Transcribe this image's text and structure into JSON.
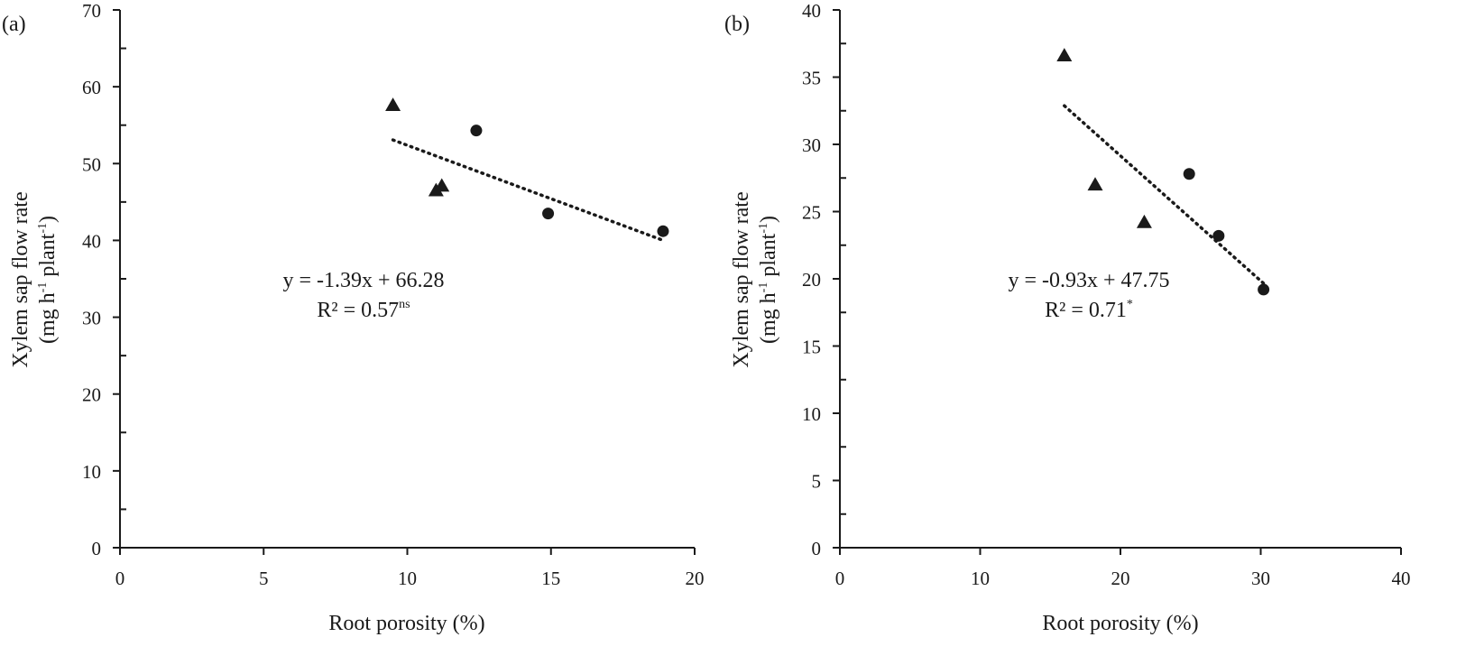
{
  "chart_data": [
    {
      "type": "scatter",
      "panel_label": "(a)",
      "xlabel": "Root porosity (%)",
      "ylabel_line1": "Xylem sap flow rate",
      "ylabel_line2_parts": [
        "(mg h",
        "-1",
        " plant",
        "-1",
        ")"
      ],
      "xlim": [
        0,
        20
      ],
      "ylim": [
        0,
        70
      ],
      "x_ticks": [
        0,
        5,
        10,
        15,
        20
      ],
      "y_ticks": [
        0,
        10,
        20,
        30,
        40,
        50,
        60,
        70
      ],
      "series": [
        {
          "name": "triangles",
          "marker": "triangle",
          "points": [
            [
              9.5,
              57.6
            ],
            [
              11.0,
              46.5
            ],
            [
              11.2,
              47.1
            ]
          ]
        },
        {
          "name": "circles",
          "marker": "circle",
          "points": [
            [
              12.4,
              54.3
            ],
            [
              14.9,
              43.5
            ],
            [
              18.9,
              41.2
            ]
          ]
        }
      ],
      "trendline": {
        "slope": -1.39,
        "intercept": 66.28,
        "x_range": [
          9.5,
          18.9
        ]
      },
      "equation": "y = -1.39x + 66.28",
      "r2_text": "R² = 0.57",
      "r2_sup": "ns"
    },
    {
      "type": "scatter",
      "panel_label": "(b)",
      "xlabel": "Root porosity (%)",
      "ylabel_line1": "Xylem sap flow rate",
      "ylabel_line2_parts": [
        "(mg h",
        "-1",
        " plant",
        "-1",
        ")"
      ],
      "xlim": [
        0,
        40
      ],
      "ylim": [
        0,
        40
      ],
      "x_ticks": [
        0,
        10,
        20,
        30,
        40
      ],
      "y_ticks": [
        0,
        5,
        10,
        15,
        20,
        25,
        30,
        35,
        40
      ],
      "series": [
        {
          "name": "triangles",
          "marker": "triangle",
          "points": [
            [
              16.0,
              36.6
            ],
            [
              18.2,
              27.0
            ],
            [
              21.7,
              24.2
            ]
          ]
        },
        {
          "name": "circles",
          "marker": "circle",
          "points": [
            [
              24.9,
              27.8
            ],
            [
              27.0,
              23.2
            ],
            [
              30.2,
              19.2
            ]
          ]
        }
      ],
      "trendline": {
        "slope": -0.93,
        "intercept": 47.75,
        "x_range": [
          16.0,
          30.2
        ]
      },
      "equation": "y = -0.93x + 47.75",
      "r2_text": "R² = 0.71",
      "r2_sup": "*"
    }
  ]
}
